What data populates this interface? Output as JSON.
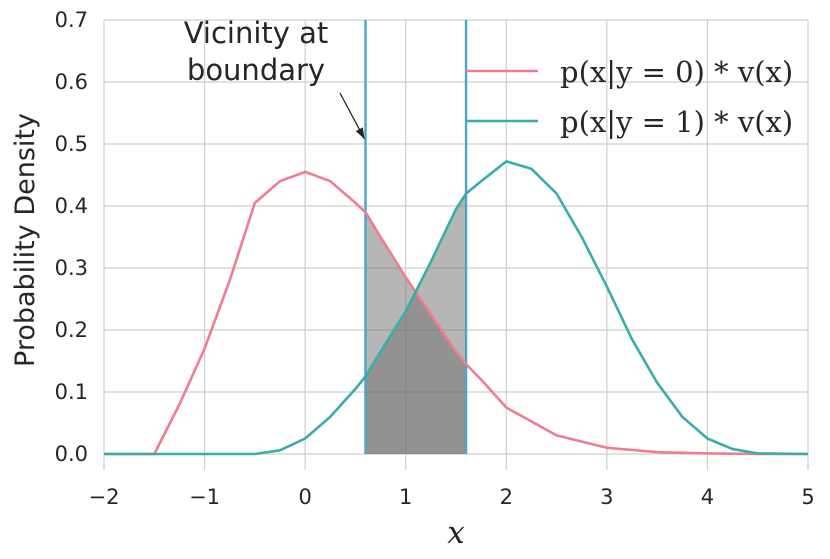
{
  "chart_data": {
    "type": "line",
    "xlabel": "x",
    "ylabel": "Probability Density",
    "xlim": [
      -2,
      5
    ],
    "ylim": [
      0,
      0.7
    ],
    "x_ticks": [
      "−2",
      "−1",
      "0",
      "1",
      "2",
      "3",
      "4",
      "5"
    ],
    "y_ticks": [
      "0.0",
      "0.1",
      "0.2",
      "0.3",
      "0.4",
      "0.5",
      "0.6",
      "0.7"
    ],
    "grid": true,
    "legend_position": "top-right",
    "series": [
      {
        "name": "p(x|y = 0) * v(x)",
        "color": "#f37b8f",
        "x": [
          -2,
          -1.5,
          -1.25,
          -1,
          -0.75,
          -0.5,
          -0.25,
          0,
          0.25,
          0.5,
          0.6,
          0.75,
          1,
          1.25,
          1.5,
          1.6,
          1.75,
          2,
          2.5,
          3,
          3.5,
          4,
          4.5,
          5
        ],
        "values": [
          0,
          0,
          0.08,
          0.17,
          0.28,
          0.405,
          0.44,
          0.455,
          0.44,
          0.405,
          0.39,
          0.35,
          0.285,
          0.225,
          0.165,
          0.145,
          0.12,
          0.075,
          0.03,
          0.01,
          0.003,
          0.001,
          0,
          0
        ]
      },
      {
        "name": "p(x|y = 1) * v(x)",
        "color": "#3aada8",
        "x": [
          -2,
          -0.5,
          -0.25,
          0,
          0.25,
          0.5,
          0.6,
          0.75,
          1,
          1.25,
          1.5,
          1.6,
          1.75,
          2,
          2.25,
          2.5,
          2.75,
          3,
          3.25,
          3.5,
          3.75,
          4,
          4.25,
          4.5,
          5
        ],
        "values": [
          0,
          0,
          0.006,
          0.025,
          0.06,
          0.105,
          0.125,
          0.165,
          0.23,
          0.31,
          0.395,
          0.42,
          0.44,
          0.472,
          0.46,
          0.42,
          0.35,
          0.27,
          0.185,
          0.115,
          0.06,
          0.025,
          0.008,
          0.001,
          0
        ]
      }
    ],
    "vertical_lines": [
      0.6,
      1.6
    ],
    "vline_color": "#48a6cc",
    "shaded_region": [
      0.6,
      1.6
    ],
    "annotation": {
      "lines": [
        "Vicinity at",
        "boundary"
      ],
      "arrow_to": [
        0.6,
        0.5
      ]
    }
  }
}
